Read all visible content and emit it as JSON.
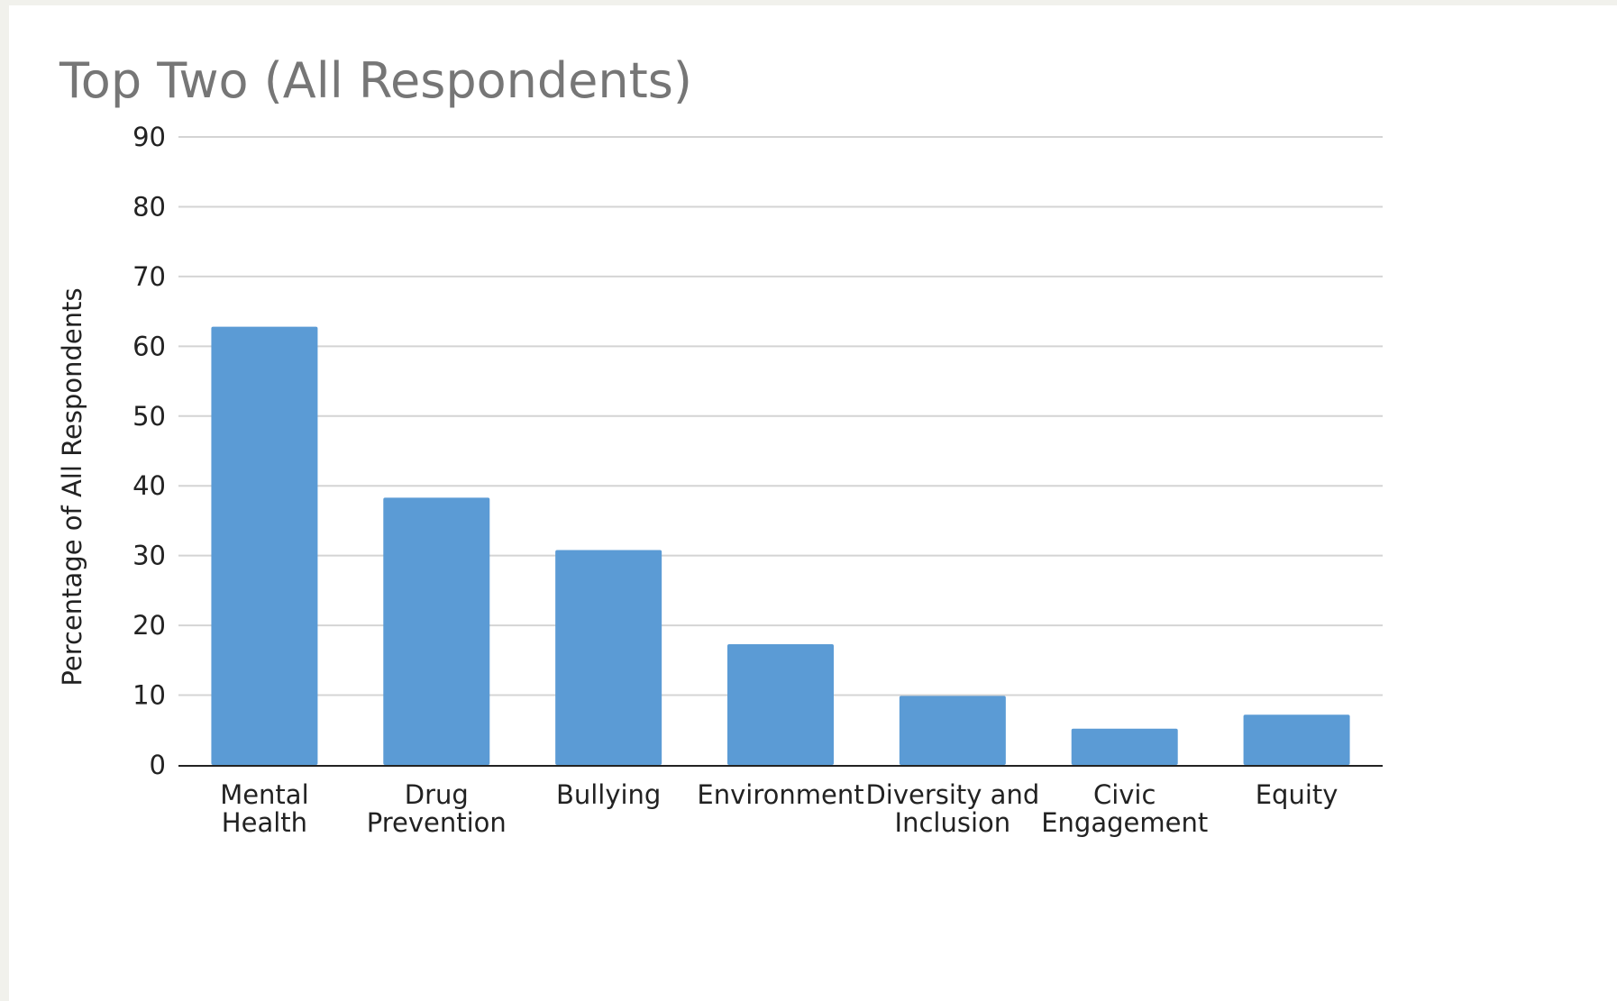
{
  "chart_data": {
    "type": "bar",
    "title": "Top Two (All Respondents)",
    "xlabel": "",
    "ylabel": "Percentage of All Respondents",
    "categories": [
      [
        "Mental",
        "Health"
      ],
      [
        "Drug",
        "Prevention"
      ],
      [
        "Bullying"
      ],
      [
        "Environment"
      ],
      [
        "Diversity and",
        "Inclusion"
      ],
      [
        "Civic",
        "Engagement"
      ],
      [
        "Equity"
      ]
    ],
    "values": [
      62.8,
      38.3,
      30.8,
      17.3,
      9.9,
      5.2,
      7.2
    ],
    "ylim": [
      0,
      90
    ],
    "yticks": [
      0,
      10,
      20,
      30,
      40,
      50,
      60,
      70,
      80,
      90
    ],
    "grid": true,
    "legend": "none",
    "colors": {
      "bar": "#5b9bd5",
      "grid": "#d4d4d4",
      "axis": "#222222",
      "title": "#767676"
    }
  }
}
